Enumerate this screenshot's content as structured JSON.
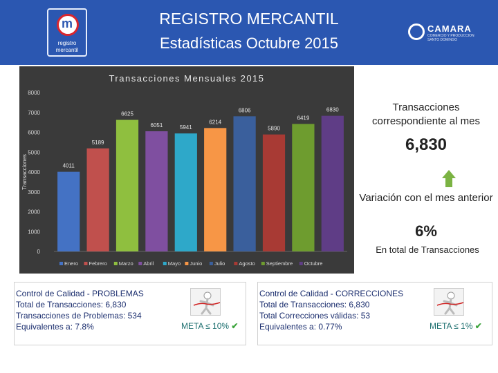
{
  "header": {
    "title_line1": "REGISTRO MERCANTIL",
    "title_line2": "Estadísticas Octubre 2015",
    "logo_left_line1": "registro",
    "logo_left_line2": "mercantil",
    "logo_left_mark": "m",
    "logo_right_name": "CAMARA",
    "logo_right_sub": "COMERCIO Y PRODUCCION SANTO DOMINGO"
  },
  "chart_data": {
    "type": "bar",
    "title": "Transacciones Mensuales 2015",
    "ylabel": "Transacciones",
    "xlabel": "",
    "ylim": [
      0,
      8000
    ],
    "yticks": [
      0,
      1000,
      2000,
      3000,
      4000,
      5000,
      6000,
      7000,
      8000
    ],
    "categories": [
      "Enero",
      "Febrero",
      "Marzo",
      "Abril",
      "Mayo",
      "Junio",
      "Julio",
      "Agosto",
      "Septiembre",
      "Octubre"
    ],
    "values": [
      4011,
      5189,
      6625,
      6051,
      5941,
      6214,
      6806,
      5890,
      6419,
      6830
    ],
    "value_labels": [
      "4011",
      "5189",
      "6625",
      "6051",
      "5941",
      "6214",
      "6806",
      "5890",
      "6419",
      "6830"
    ],
    "colors": [
      "#4472c4",
      "#c0504d",
      "#8fbf3f",
      "#7f4fa0",
      "#2ea8c9",
      "#f79646",
      "#3a5f9c",
      "#a83a34",
      "#6e9c2f",
      "#5f3d86"
    ],
    "grid": false,
    "legend": "bottom"
  },
  "side": {
    "heading": "Transacciones correspondiente al mes",
    "value": "6,830",
    "variation_label": "Variación con el mes anterior",
    "variation_value": "6%",
    "footer": "En total de Transacciones"
  },
  "quality_problems": {
    "title": "Control de Calidad - PROBLEMAS",
    "line1": "Total de Transacciones: 6,830",
    "line2": "Transacciones de Problemas: 534",
    "line3": "Equivalentes a: 7.8%",
    "meta": "META ≤ 10%",
    "check": "✔"
  },
  "quality_corrections": {
    "title": "Control de Calidad - CORRECCIONES",
    "line1": "Total de Transacciones: 6,830",
    "line2": "Total Correcciones válidas: 53",
    "line3": "Equivalentes a: 0.77%",
    "meta": "META ≤ 1%",
    "check": "✔"
  }
}
